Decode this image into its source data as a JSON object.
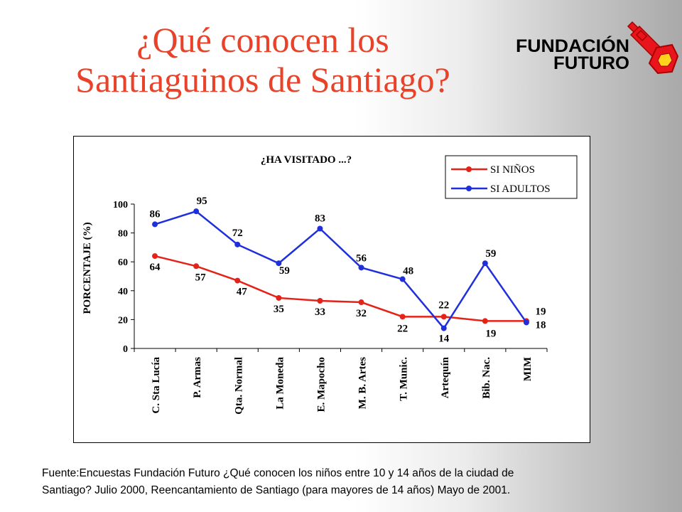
{
  "title": {
    "line1": "¿Qué conocen los",
    "line2": "Santiaguinos de Santiago?"
  },
  "logo": {
    "line1": "FUNDACIÓN",
    "line2": "FUTURO"
  },
  "colors": {
    "title": "#e8432a",
    "ninos": "#e52218",
    "adultos": "#1f2fdc",
    "logo_key": "#e8161c",
    "logo_text": "#000000"
  },
  "chart_data": {
    "type": "line",
    "title": "¿HA VISITADO ...?",
    "ylabel": "PORCENTAJE (%)",
    "xlabel": "",
    "ylim": [
      0,
      100
    ],
    "yticks": [
      "0",
      "20",
      "40",
      "60",
      "80",
      "100"
    ],
    "categories": [
      "C. Sta Lucía",
      "P. Armas",
      "Qta. Normal",
      "La Moneda",
      "E. Mapocho",
      "M. B. Artes",
      "T. Munic.",
      "Artequín",
      "Bib. Nac.",
      "MIM"
    ],
    "series": [
      {
        "name": "SI NIÑOS",
        "values": [
          64,
          57,
          47,
          35,
          33,
          32,
          22,
          22,
          19,
          19
        ],
        "labels": [
          "64",
          "57",
          "47",
          "35",
          "33",
          "32",
          "22",
          "22",
          "19",
          "19"
        ],
        "color": "#e52218"
      },
      {
        "name": "SI ADULTOS",
        "values": [
          86,
          95,
          72,
          59,
          83,
          56,
          48,
          14,
          59,
          18
        ],
        "labels": [
          "86",
          "95",
          "72",
          "59",
          "83",
          "56",
          "48",
          "14",
          "59",
          "18"
        ],
        "color": "#1f2fdc"
      }
    ],
    "legend": "top-right",
    "grid": false
  },
  "source": {
    "line1": "Fuente:Encuestas Fundación Futuro ¿Qué conocen los niños entre 10 y 14 años de la ciudad de",
    "line2": "Santiago? Julio 2000, Reencantamiento de Santiago (para mayores de 14 años) Mayo de 2001."
  }
}
